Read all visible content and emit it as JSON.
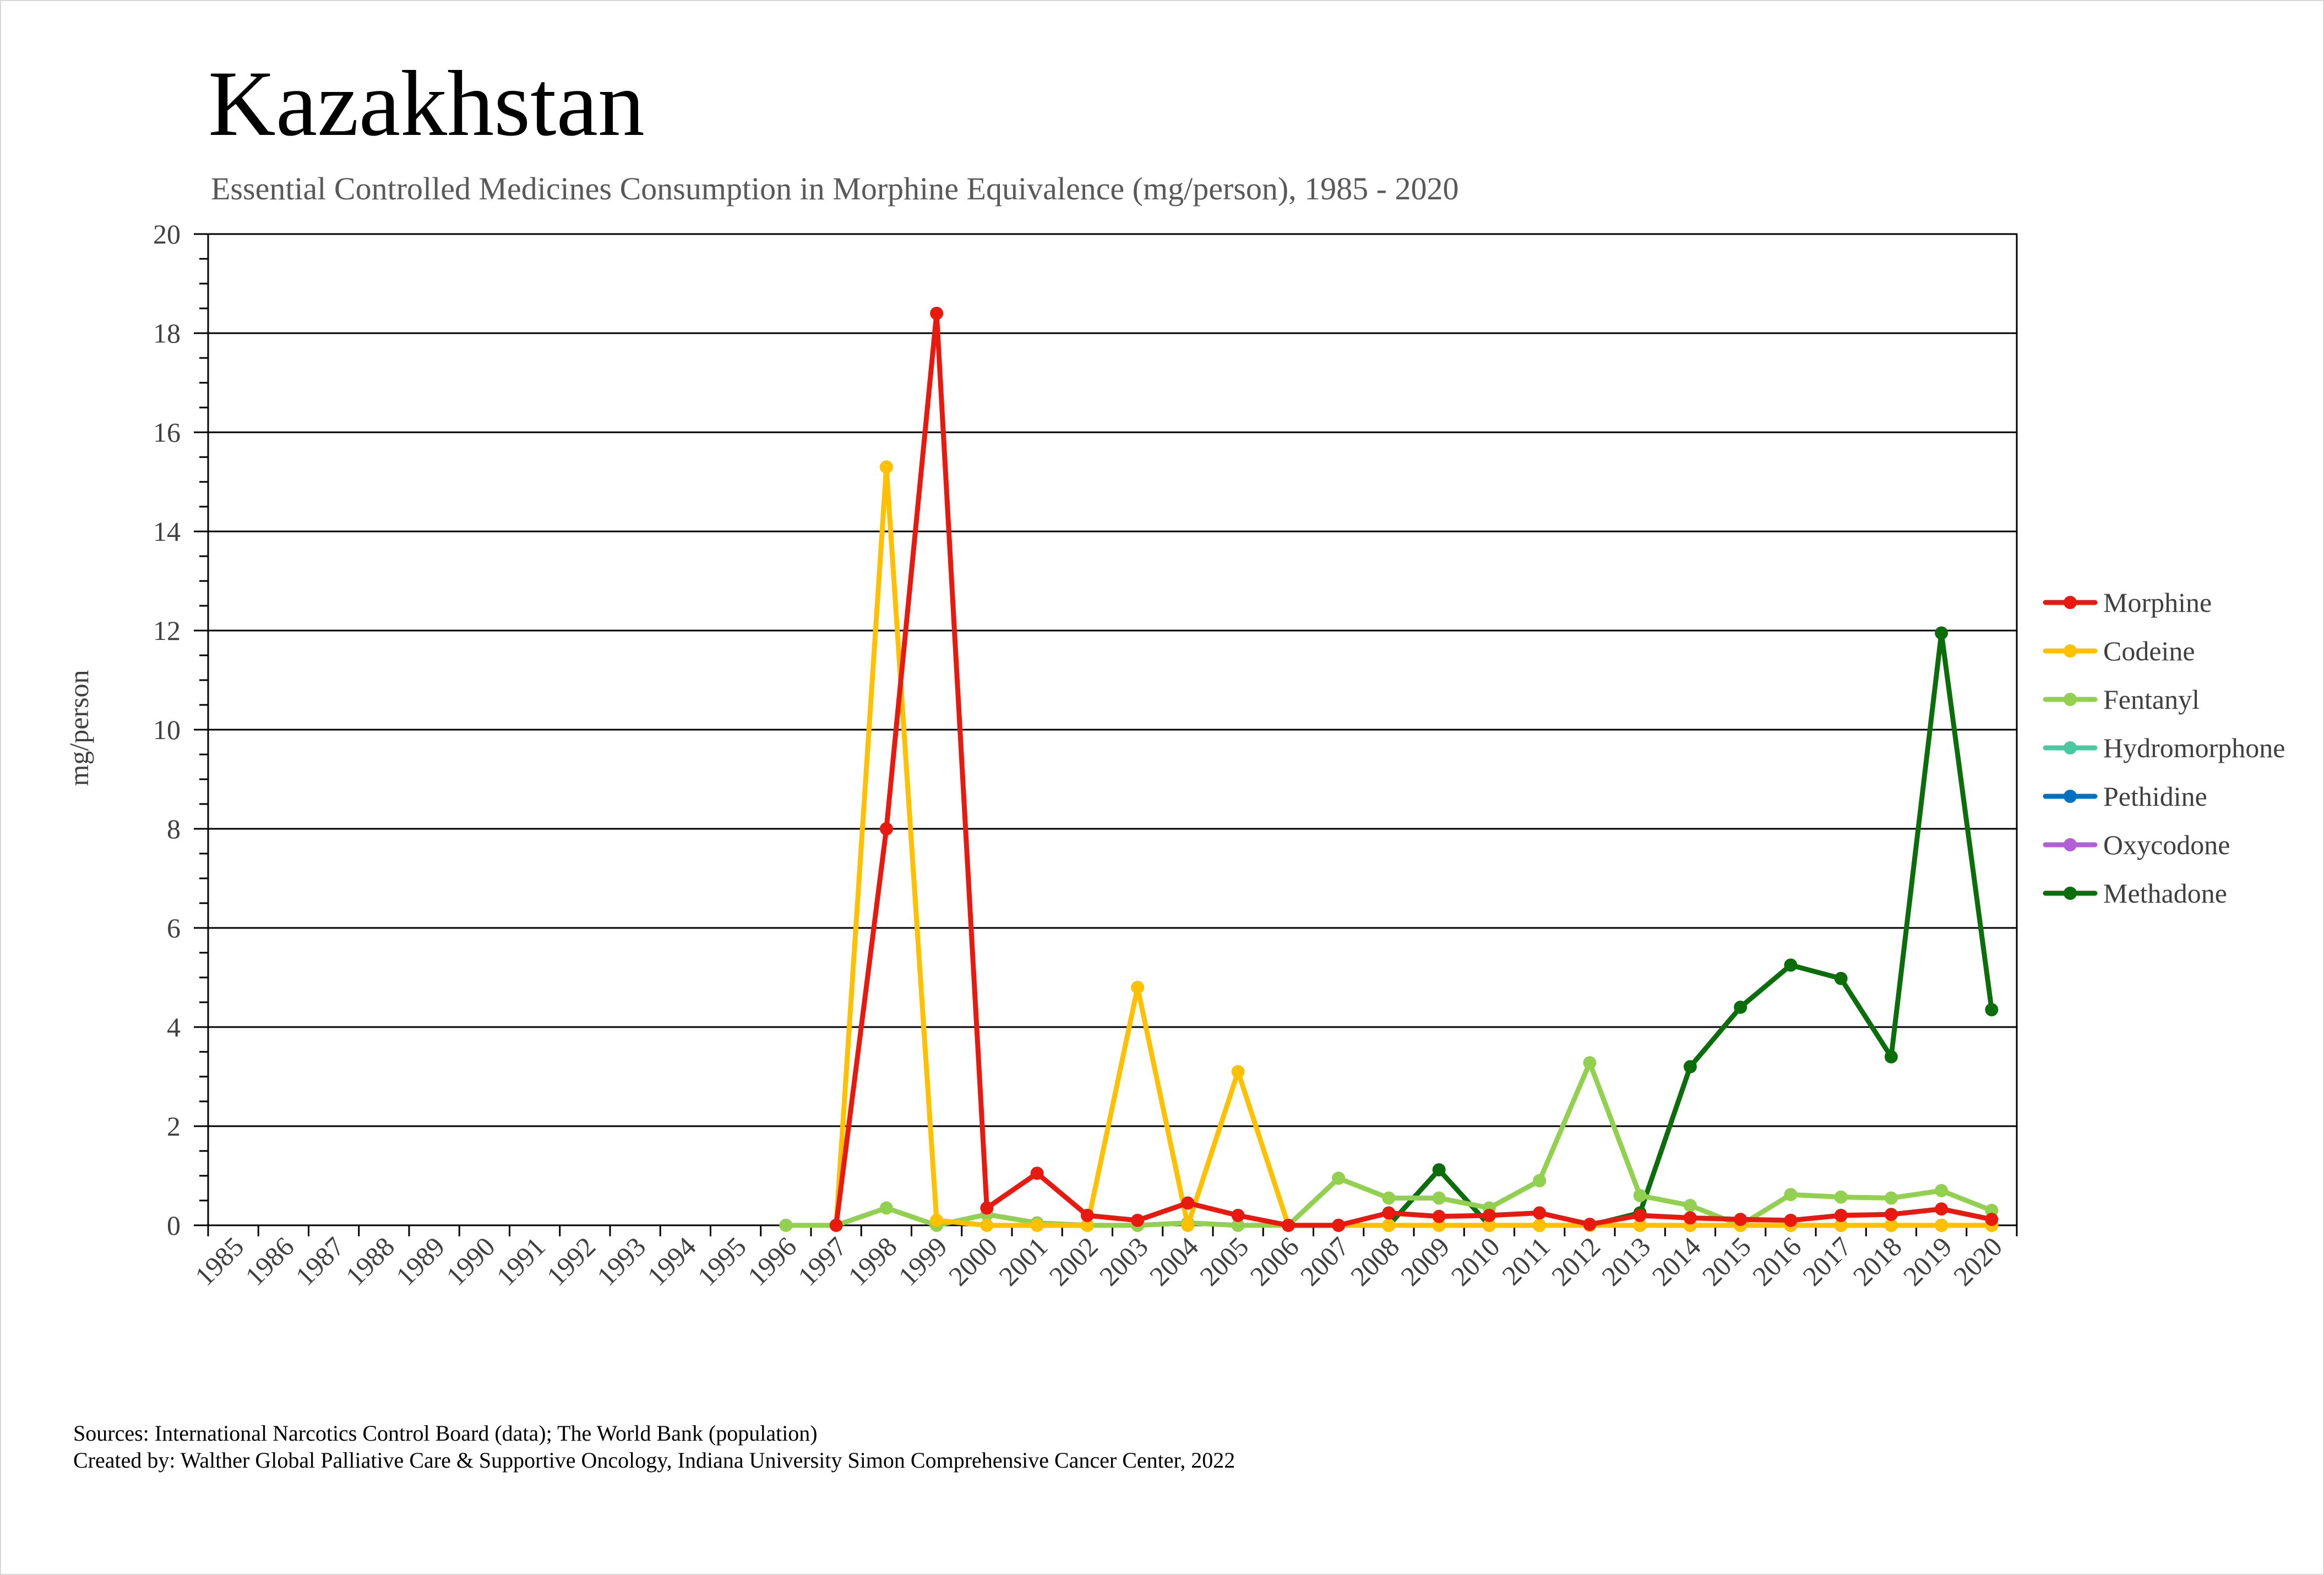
{
  "title": "Kazakhstan",
  "subtitle": "Essential Controlled Medicines Consumption in Morphine Equivalence (mg/person), 1985 - 2020",
  "footer": {
    "sources": "Sources: International Narcotics Control Board (data); The World Bank (population)",
    "created_by": "Created by: Walther Global Palliative Care & Supportive Oncology, Indiana University Simon Comprehensive Cancer Center, 2022"
  },
  "chart_data": {
    "type": "line",
    "title": "Kazakhstan",
    "subtitle": "Essential Controlled Medicines Consumption in Morphine Equivalence (mg/person), 1985 - 2020",
    "xlabel": "",
    "ylabel": "mg/person",
    "ylim": [
      0,
      20
    ],
    "yticks": [
      0,
      2,
      4,
      6,
      8,
      10,
      12,
      14,
      16,
      18,
      20
    ],
    "ytick_labels": [
      "0",
      "2",
      "4",
      "6",
      "8",
      "10",
      "12",
      "14",
      "16",
      "18",
      "20"
    ],
    "grid": true,
    "legend_position": "right",
    "categories": [
      "1985",
      "1986",
      "1987",
      "1988",
      "1989",
      "1990",
      "1991",
      "1992",
      "1993",
      "1994",
      "1995",
      "1996",
      "1997",
      "1998",
      "1999",
      "2000",
      "2001",
      "2002",
      "2003",
      "2004",
      "2005",
      "2006",
      "2007",
      "2008",
      "2009",
      "2010",
      "2011",
      "2012",
      "2013",
      "2014",
      "2015",
      "2016",
      "2017",
      "2018",
      "2019",
      "2020"
    ],
    "series": [
      {
        "name": "Morphine",
        "color": "#e8190f",
        "values": [
          null,
          null,
          null,
          null,
          null,
          null,
          null,
          null,
          null,
          null,
          null,
          null,
          0.0,
          8.0,
          18.4,
          0.35,
          1.05,
          0.2,
          0.1,
          0.45,
          0.2,
          0.0,
          0.0,
          0.25,
          0.18,
          0.2,
          0.25,
          0.02,
          0.2,
          0.15,
          0.12,
          0.1,
          0.2,
          0.22,
          0.33,
          0.12
        ]
      },
      {
        "name": "Codeine",
        "color": "#ffc000",
        "values": [
          null,
          null,
          null,
          null,
          null,
          null,
          null,
          null,
          null,
          null,
          null,
          null,
          0.0,
          15.3,
          0.1,
          0.0,
          0.0,
          0.0,
          4.8,
          0.0,
          3.1,
          0.0,
          0.0,
          0.0,
          0.0,
          0.0,
          0.0,
          0.0,
          0.0,
          0.0,
          0.0,
          0.0,
          0.0,
          0.0,
          0.0,
          0.0
        ]
      },
      {
        "name": "Fentanyl",
        "color": "#92d050",
        "values": [
          null,
          null,
          null,
          null,
          null,
          null,
          null,
          null,
          null,
          null,
          null,
          0.0,
          0.0,
          0.35,
          0.0,
          0.22,
          0.05,
          0.0,
          0.0,
          0.05,
          0.0,
          0.0,
          0.95,
          0.55,
          0.55,
          0.35,
          0.9,
          3.28,
          0.6,
          0.4,
          0.0,
          0.62,
          0.57,
          0.55,
          0.7,
          0.3
        ]
      },
      {
        "name": "Hydromorphone",
        "color": "#4bc89f",
        "values": [
          null,
          null,
          null,
          null,
          null,
          null,
          null,
          null,
          null,
          null,
          null,
          null,
          null,
          null,
          null,
          null,
          null,
          null,
          null,
          null,
          null,
          null,
          null,
          null,
          null,
          null,
          null,
          null,
          0.0,
          0.0,
          0.0,
          0.0,
          0.0,
          0.0,
          0.0,
          0.0
        ]
      },
      {
        "name": "Pethidine",
        "color": "#0070c0",
        "values": [
          null,
          null,
          null,
          null,
          null,
          null,
          null,
          null,
          null,
          null,
          null,
          null,
          null,
          null,
          null,
          null,
          null,
          null,
          null,
          null,
          null,
          null,
          null,
          null,
          null,
          null,
          null,
          null,
          0.0,
          0.0,
          0.0,
          0.0,
          0.0,
          0.0,
          0.0,
          0.0
        ]
      },
      {
        "name": "Oxycodone",
        "color": "#b35fd6",
        "values": [
          null,
          null,
          null,
          null,
          null,
          null,
          null,
          null,
          null,
          null,
          null,
          null,
          null,
          null,
          null,
          null,
          null,
          null,
          null,
          null,
          null,
          null,
          null,
          null,
          null,
          null,
          null,
          null,
          0.0,
          0.0,
          0.0,
          0.0,
          0.0,
          0.0,
          0.0,
          0.0
        ]
      },
      {
        "name": "Methadone",
        "color": "#0b6e0b",
        "values": [
          null,
          null,
          null,
          null,
          null,
          null,
          null,
          null,
          null,
          null,
          null,
          null,
          null,
          null,
          null,
          null,
          null,
          null,
          0.0,
          null,
          null,
          0.0,
          0.0,
          0.0,
          1.12,
          0.0,
          0.0,
          0.0,
          0.25,
          3.2,
          4.4,
          5.25,
          4.98,
          3.4,
          11.95,
          4.35
        ]
      }
    ]
  }
}
